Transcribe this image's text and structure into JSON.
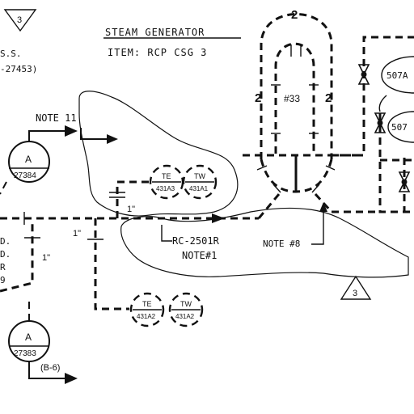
{
  "title": {
    "line1": "STEAM GENERATOR",
    "line2": "ITEM: RCP CSG 3"
  },
  "notes": {
    "note11": "NOTE 11",
    "note8": "NOTE #8",
    "note1": "NOTE#1",
    "line_id": "RC-2501R"
  },
  "pipe_sizes": {
    "upper_branch": "1\"",
    "lower_branch": "1\"",
    "left_drop": "1\""
  },
  "steam_generator": {
    "top_label": "2",
    "left_label": "2",
    "right_label": "2",
    "tube_label": "#33"
  },
  "instruments": {
    "te_upper_tag": "TE",
    "te_upper_num": "431A3",
    "tw_upper_tag": "TW",
    "tw_upper_num": "431A1",
    "te_lower_tag": "TE",
    "te_lower_num": "431A2",
    "tw_lower_tag": "TW",
    "tw_lower_num": "431A2",
    "gauge_upper_tag": "A",
    "gauge_upper_num": "27384",
    "gauge_lower_tag": "A",
    "gauge_lower_num": "27383",
    "gauge_lower_ref": "(B-6)"
  },
  "valves": {
    "v1": "507A",
    "v2": "507"
  },
  "revisions": {
    "top_left": "3",
    "bottom": "3"
  },
  "cutoff_text": {
    "top_left_1": "S.S.",
    "top_left_2": "-27453)",
    "left_1": "D.",
    "left_2": "D.",
    "left_3": "R",
    "left_4": "9"
  }
}
